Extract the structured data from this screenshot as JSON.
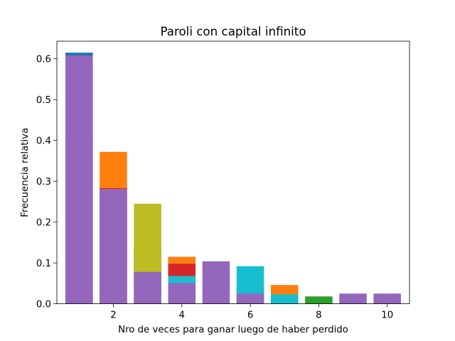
{
  "chart_data": {
    "type": "bar",
    "title": "Paroli con capital infinito",
    "xlabel": "Nro de veces para ganar luego de haber perdido",
    "ylabel": "Frecuencia relativa",
    "xlim": [
      0.35,
      10.65
    ],
    "ylim": [
      0,
      0.643
    ],
    "xticks": [
      2,
      4,
      6,
      8,
      10
    ],
    "yticks": [
      0.0,
      0.1,
      0.2,
      0.3,
      0.4,
      0.5,
      0.6
    ],
    "ytick_labels": [
      "0.0",
      "0.1",
      "0.2",
      "0.3",
      "0.4",
      "0.5",
      "0.6"
    ],
    "bar_width": 0.8,
    "grid": false,
    "legend": "none",
    "layers": [
      {
        "color": "#1f77b4",
        "bars": [
          {
            "x": 1,
            "value": 0.615
          },
          {
            "x": 4,
            "value": 0.06
          },
          {
            "x": 6,
            "value": 0.04
          }
        ]
      },
      {
        "color": "#ff7f0e",
        "bars": [
          {
            "x": 2,
            "value": 0.372
          },
          {
            "x": 3,
            "value": 0.137
          },
          {
            "x": 4,
            "value": 0.115
          },
          {
            "x": 7,
            "value": 0.046
          }
        ]
      },
      {
        "color": "#2ca02c",
        "bars": [
          {
            "x": 3,
            "value": 0.13
          },
          {
            "x": 8,
            "value": 0.018
          }
        ]
      },
      {
        "color": "#d62728",
        "bars": [
          {
            "x": 1,
            "value": 0.583
          },
          {
            "x": 2,
            "value": 0.283
          },
          {
            "x": 4,
            "value": 0.098
          }
        ]
      },
      {
        "color": "#bcbd22",
        "bars": [
          {
            "x": 3,
            "value": 0.245
          }
        ]
      },
      {
        "color": "#17becf",
        "bars": [
          {
            "x": 4,
            "value": 0.068
          },
          {
            "x": 6,
            "value": 0.092
          },
          {
            "x": 7,
            "value": 0.023
          }
        ]
      },
      {
        "color": "#9467bd",
        "bars": [
          {
            "x": 1,
            "value": 0.41
          },
          {
            "x": 2,
            "value": 0.281
          },
          {
            "x": 3,
            "value": 0.078
          },
          {
            "x": 4,
            "value": 0.051
          },
          {
            "x": 5,
            "value": 0.104
          },
          {
            "x": 6,
            "value": 0.025
          },
          {
            "x": 9,
            "value": 0.025
          },
          {
            "x": 10,
            "value": 0.025
          }
        ]
      },
      {
        "color": "#9467bd",
        "bars": [
          {
            "x": 1,
            "value": 0.608
          }
        ]
      }
    ],
    "draw_order": [
      0,
      1,
      2,
      4,
      3,
      7,
      5,
      6
    ]
  }
}
